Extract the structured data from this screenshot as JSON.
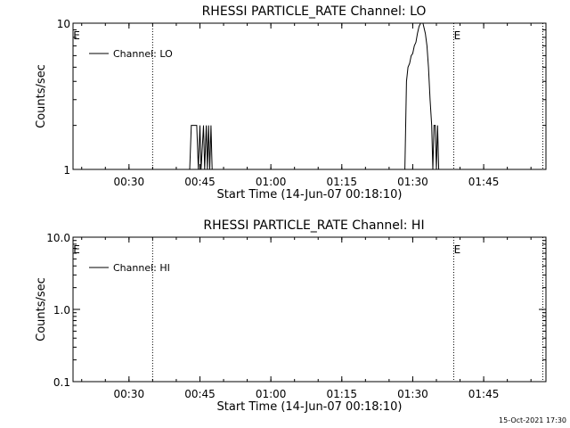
{
  "footer": {
    "timestamp": "15-Oct-2021 17:30"
  },
  "chart_data": [
    {
      "type": "line",
      "title": "RHESSI PARTICLE_RATE Channel: LO",
      "xlabel": "Start Time (14-Jun-07 00:18:10)",
      "ylabel": "Counts/sec",
      "yscale": "log",
      "ylim": [
        1,
        10
      ],
      "xlim": [
        "00:18:10",
        "01:58:10"
      ],
      "x_ticks": [
        "00:30",
        "00:45",
        "01:00",
        "01:15",
        "01:30",
        "01:45"
      ],
      "y_ticks": [
        "1",
        "10"
      ],
      "legend": {
        "position": "top-left",
        "entries": [
          "Channel: LO"
        ]
      },
      "eclipse_markers": [
        {
          "label": "E",
          "time": "00:18:10"
        },
        {
          "label": "E",
          "time": "01:38:40"
        }
      ],
      "dotted_lines": [
        "00:35:00",
        "01:38:40",
        "01:57:30"
      ],
      "series": [
        {
          "name": "Channel: LO",
          "points": [
            [
              "00:42:50",
              1
            ],
            [
              "00:43:10",
              2
            ],
            [
              "00:44:20",
              2
            ],
            [
              "00:44:40",
              1
            ],
            [
              "00:45:00",
              2
            ],
            [
              "00:45:15",
              1
            ],
            [
              "00:45:45",
              2
            ],
            [
              "00:46:00",
              1
            ],
            [
              "00:46:20",
              2
            ],
            [
              "00:46:35",
              1
            ],
            [
              "00:46:50",
              2
            ],
            [
              "00:47:05",
              1
            ],
            [
              "00:47:20",
              2
            ],
            [
              "00:47:35",
              1
            ],
            [
              "01:28:20",
              1
            ],
            [
              "01:28:40",
              4
            ],
            [
              "01:29:00",
              5
            ],
            [
              "01:29:20",
              5.3
            ],
            [
              "01:29:40",
              6
            ],
            [
              "01:30:00",
              6.2
            ],
            [
              "01:30:20",
              7
            ],
            [
              "01:30:40",
              7.4
            ],
            [
              "01:31:00",
              8.5
            ],
            [
              "01:31:20",
              9.5
            ],
            [
              "01:31:40",
              10
            ],
            [
              "01:32:10",
              10
            ],
            [
              "01:32:40",
              8.5
            ],
            [
              "01:33:00",
              7
            ],
            [
              "01:33:20",
              5
            ],
            [
              "01:33:40",
              3
            ],
            [
              "01:34:00",
              2
            ],
            [
              "01:34:15",
              1
            ],
            [
              "01:34:30",
              2
            ],
            [
              "01:34:45",
              2
            ],
            [
              "01:35:00",
              1
            ],
            [
              "01:35:15",
              2
            ],
            [
              "01:35:30",
              1
            ]
          ]
        }
      ]
    },
    {
      "type": "line",
      "title": "RHESSI PARTICLE_RATE Channel: HI",
      "xlabel": "Start Time (14-Jun-07 00:18:10)",
      "ylabel": "Counts/sec",
      "yscale": "log",
      "ylim": [
        0.1,
        10
      ],
      "xlim": [
        "00:18:10",
        "01:58:10"
      ],
      "x_ticks": [
        "00:30",
        "00:45",
        "01:00",
        "01:15",
        "01:30",
        "01:45"
      ],
      "y_ticks": [
        "0.1",
        "1.0",
        "10.0"
      ],
      "legend": {
        "position": "top-left",
        "entries": [
          "Channel: HI"
        ]
      },
      "eclipse_markers": [
        {
          "label": "E",
          "time": "00:18:10"
        },
        {
          "label": "E",
          "time": "01:38:40"
        }
      ],
      "dotted_lines": [
        "00:35:00",
        "01:38:40",
        "01:57:30"
      ],
      "series": [
        {
          "name": "Channel: HI",
          "points": []
        }
      ]
    }
  ]
}
